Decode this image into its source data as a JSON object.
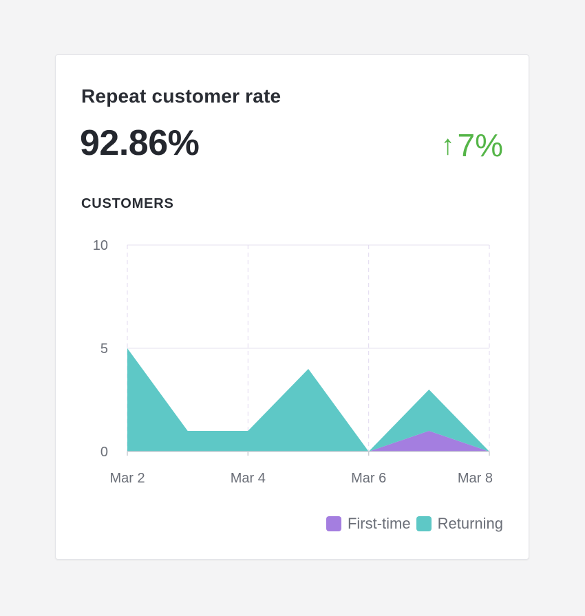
{
  "card": {
    "title": "Repeat customer rate",
    "metric": "92.86%",
    "change": "7%",
    "change_arrow": "↑",
    "change_color": "#55b548",
    "section_label": "CUSTOMERS"
  },
  "chart_data": {
    "type": "area",
    "stacked": true,
    "x": [
      "Mar 2",
      "Mar 3",
      "Mar 4",
      "Mar 5",
      "Mar 6",
      "Mar 7",
      "Mar 8"
    ],
    "x_tick_labels": [
      "Mar 2",
      "Mar 4",
      "Mar 6",
      "Mar 8"
    ],
    "y_ticks": [
      0,
      5,
      10
    ],
    "ylim": [
      0,
      10
    ],
    "series": [
      {
        "name": "First-time",
        "color": "#a47ee0",
        "values": [
          0,
          0,
          0,
          0,
          0,
          1,
          0
        ]
      },
      {
        "name": "Returning",
        "color": "#5ec8c6",
        "values": [
          5,
          1,
          1,
          4,
          0,
          2,
          0
        ]
      }
    ],
    "legend_position": "bottom-right",
    "grid": true
  }
}
